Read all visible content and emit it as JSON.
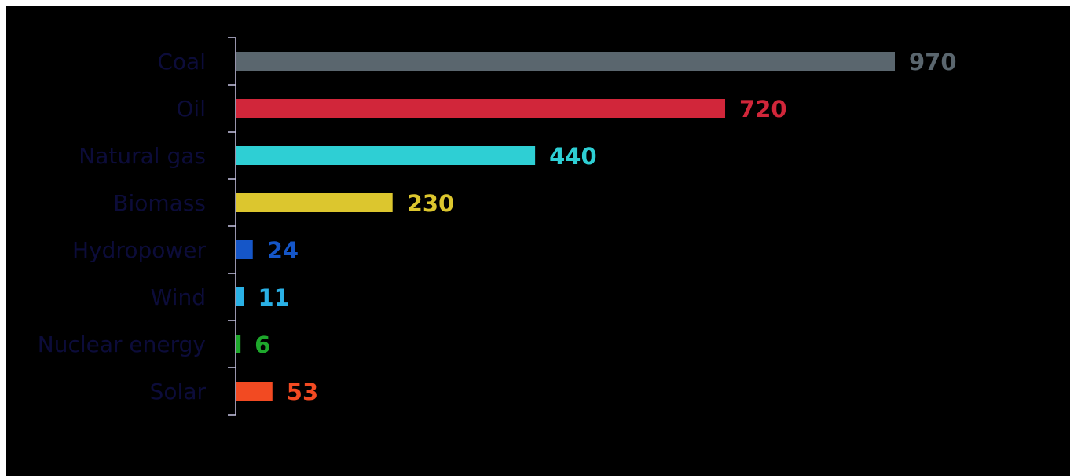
{
  "chart_data": {
    "type": "bar",
    "orientation": "horizontal",
    "categories": [
      "Coal",
      "Oil",
      "Natural gas",
      "Biomass",
      "Hydropower",
      "Wind",
      "Nuclear energy",
      "Solar"
    ],
    "values": [
      970,
      720,
      440,
      230,
      24,
      11,
      6,
      53
    ],
    "value_labels": [
      "970",
      "720",
      "440",
      "230",
      "24",
      "11",
      "6",
      "53"
    ],
    "colors": [
      "#5a666e",
      "#d1263a",
      "#2ecfd4",
      "#dcc62e",
      "#1556c8",
      "#2ab1e6",
      "#1ea82c",
      "#f24a22"
    ],
    "label_color": "#0c0c3a",
    "axis_color": "#c9c6e6",
    "background": "#000000",
    "title": "",
    "xlabel": "",
    "ylabel": "",
    "xlim": [
      0,
      970
    ],
    "grid": false,
    "legend": "none"
  }
}
